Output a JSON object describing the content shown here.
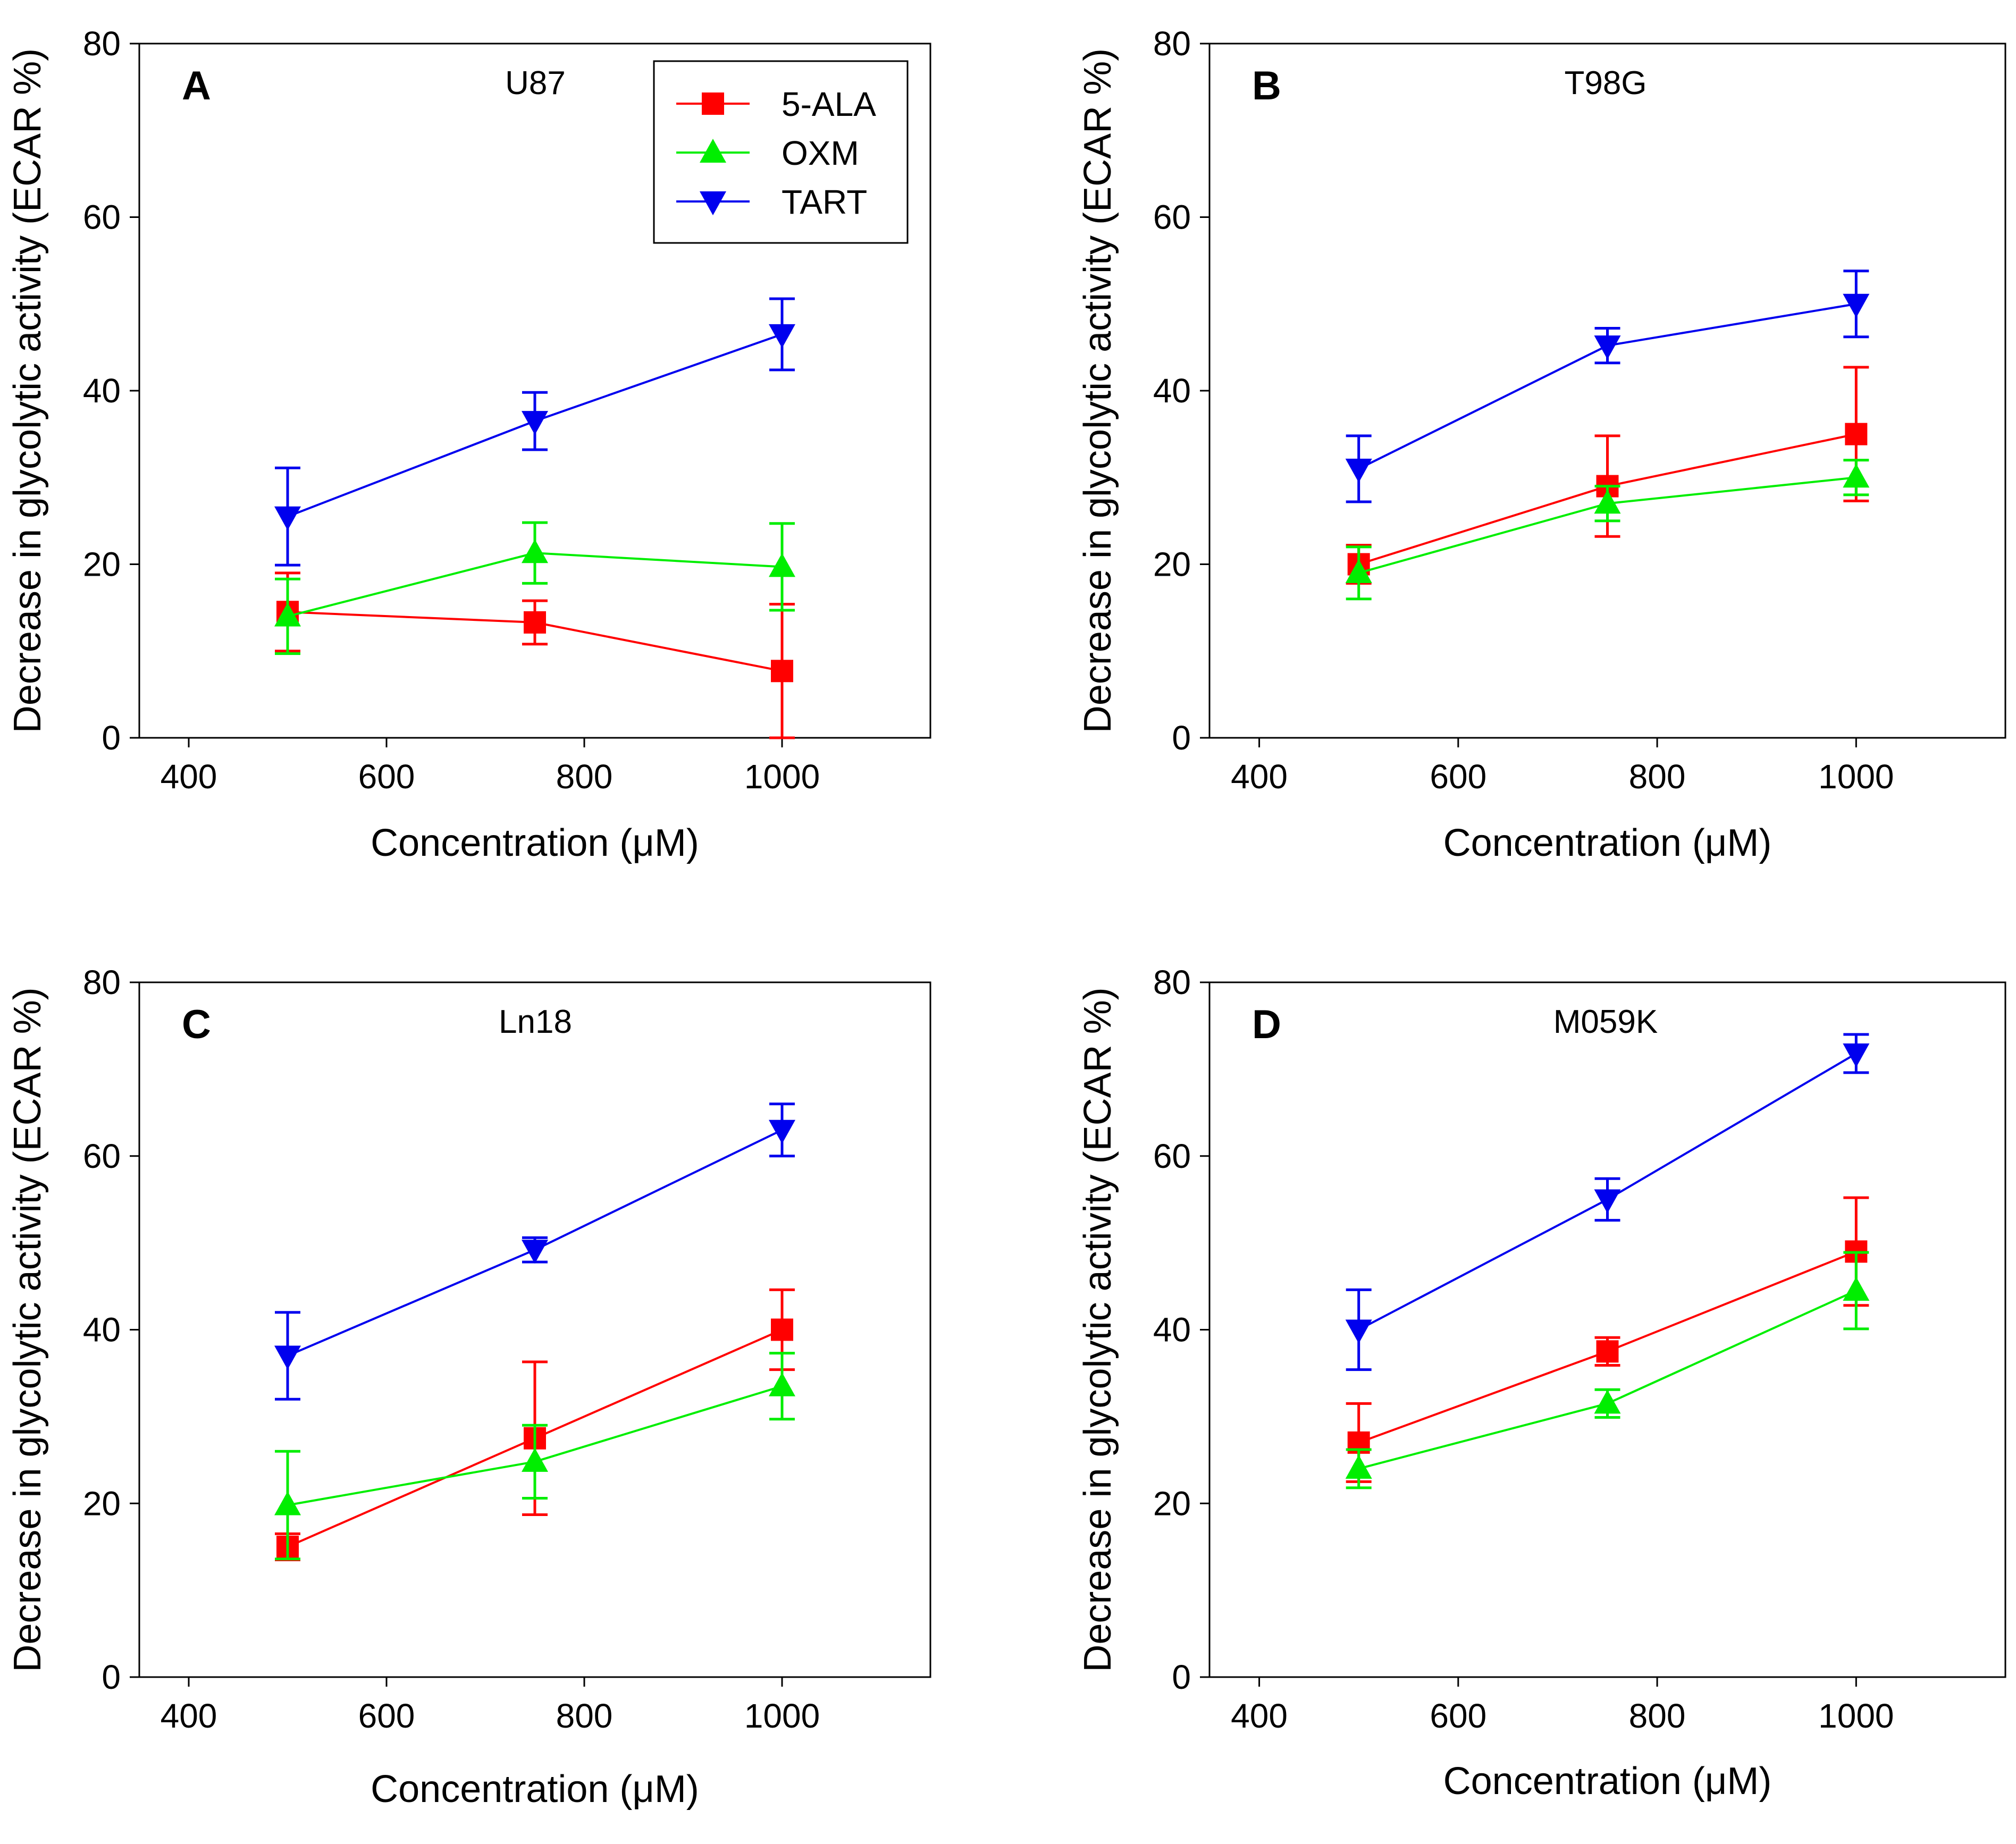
{
  "chart_data": [
    {
      "type": "line",
      "panel_letter": "A",
      "title": "U87",
      "xlabel": "Concentration (μM)",
      "ylabel": "Decrease in glycolytic activity (ECAR %)",
      "xlim": [
        350,
        1150
      ],
      "ylim": [
        0,
        80
      ],
      "xticks": [
        400,
        600,
        800,
        1000
      ],
      "yticks": [
        0,
        20,
        40,
        60,
        80
      ],
      "x": [
        500,
        750,
        1000
      ],
      "legend": {
        "position": "top-right",
        "entries": [
          "5-ALA",
          "OXM",
          "TART"
        ]
      },
      "series": [
        {
          "name": "5-ALA",
          "color": "#ff0000",
          "marker": "square",
          "values": [
            14.5,
            13.3,
            7.7
          ],
          "errors": [
            4.5,
            2.5,
            7.7
          ]
        },
        {
          "name": "OXM",
          "color": "#00ee00",
          "marker": "triangle-up",
          "values": [
            14.0,
            21.3,
            19.7
          ],
          "errors": [
            4.3,
            3.5,
            5.0
          ]
        },
        {
          "name": "TART",
          "color": "#0000ee",
          "marker": "triangle-down",
          "values": [
            25.5,
            36.5,
            46.5
          ],
          "errors": [
            5.6,
            3.3,
            4.1
          ]
        }
      ]
    },
    {
      "type": "line",
      "panel_letter": "B",
      "title": "T98G",
      "xlabel": "Concentration (μM)",
      "ylabel": "Decrease in glycolytic activity (ECAR %)",
      "xlim": [
        350,
        1150
      ],
      "ylim": [
        0,
        80
      ],
      "xticks": [
        400,
        600,
        800,
        1000
      ],
      "yticks": [
        0,
        20,
        40,
        60,
        80
      ],
      "x": [
        500,
        750,
        1000
      ],
      "series": [
        {
          "name": "5-ALA",
          "color": "#ff0000",
          "marker": "square",
          "values": [
            20.0,
            29.0,
            35.0
          ],
          "errors": [
            2.2,
            5.8,
            7.7
          ]
        },
        {
          "name": "OXM",
          "color": "#00ee00",
          "marker": "triangle-up",
          "values": [
            19.0,
            27.0,
            30.0
          ],
          "errors": [
            3.0,
            2.0,
            2.0
          ]
        },
        {
          "name": "TART",
          "color": "#0000ee",
          "marker": "triangle-down",
          "values": [
            31.0,
            45.2,
            50.0
          ],
          "errors": [
            3.8,
            2.0,
            3.8
          ]
        }
      ]
    },
    {
      "type": "line",
      "panel_letter": "C",
      "title": "Ln18",
      "xlabel": "Concentration (μM)",
      "ylabel": "Decrease in glycolytic activity (ECAR %)",
      "xlim": [
        350,
        1150
      ],
      "ylim": [
        0,
        80
      ],
      "xticks": [
        400,
        600,
        800,
        1000
      ],
      "yticks": [
        0,
        20,
        40,
        60,
        80
      ],
      "x": [
        500,
        750,
        1000
      ],
      "series": [
        {
          "name": "5-ALA",
          "color": "#ff0000",
          "marker": "square",
          "values": [
            15.0,
            27.5,
            40.0
          ],
          "errors": [
            1.5,
            8.8,
            4.6
          ]
        },
        {
          "name": "OXM",
          "color": "#00ee00",
          "marker": "triangle-up",
          "values": [
            19.8,
            24.8,
            33.5
          ],
          "errors": [
            6.2,
            4.2,
            3.8
          ]
        },
        {
          "name": "TART",
          "color": "#0000ee",
          "marker": "triangle-down",
          "values": [
            37.0,
            49.2,
            63.0
          ],
          "errors": [
            5.0,
            1.4,
            3.0
          ]
        }
      ]
    },
    {
      "type": "line",
      "panel_letter": "D",
      "title": "M059K",
      "xlabel": "Concentration (μM)",
      "ylabel": "Decrease in glycolytic activity (ECAR %)",
      "xlim": [
        350,
        1150
      ],
      "ylim": [
        0,
        80
      ],
      "xticks": [
        400,
        600,
        800,
        1000
      ],
      "yticks": [
        0,
        20,
        40,
        60,
        80
      ],
      "x": [
        500,
        750,
        1000
      ],
      "series": [
        {
          "name": "5-ALA",
          "color": "#ff0000",
          "marker": "square",
          "values": [
            27.0,
            37.5,
            49.0
          ],
          "errors": [
            4.5,
            1.6,
            6.2
          ]
        },
        {
          "name": "OXM",
          "color": "#00ee00",
          "marker": "triangle-up",
          "values": [
            24.0,
            31.5,
            44.5
          ],
          "errors": [
            2.2,
            1.6,
            4.4
          ]
        },
        {
          "name": "TART",
          "color": "#0000ee",
          "marker": "triangle-down",
          "values": [
            40.0,
            55.0,
            71.8
          ],
          "errors": [
            4.6,
            2.4,
            2.2
          ]
        }
      ]
    }
  ]
}
